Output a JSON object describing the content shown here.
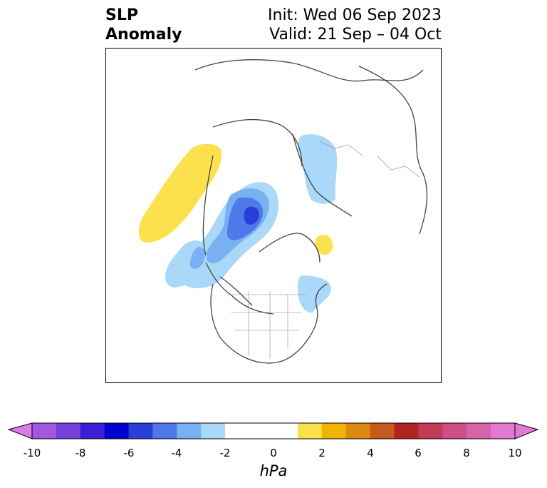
{
  "title": {
    "left_line1": "SLP",
    "left_line2": "Anomaly",
    "right_line1": "Init: Wed 06 Sep 2023",
    "right_line2": "Valid: 21 Sep – 04 Oct"
  },
  "map": {
    "projection": "north-polar-stereographic",
    "region": "Northern Hemisphere (North America, Arctic, Europe)"
  },
  "colorbar": {
    "unit": "hPa",
    "tick_labels": [
      "-10",
      "-8",
      "-6",
      "-4",
      "-2",
      "0",
      "2",
      "4",
      "6",
      "8",
      "10"
    ],
    "bin_colors": [
      "#d97ae8",
      "#9f58df",
      "#7440d8",
      "#3b1fd6",
      "#0000d0",
      "#2a3fd8",
      "#4f79e8",
      "#78b0f2",
      "#a9d8f8",
      "#ffffff",
      "#fce14f",
      "#f0b400",
      "#dc8a10",
      "#c75a1a",
      "#b22424",
      "#c23a58",
      "#ce4f82",
      "#d763a8",
      "#e27ad2"
    ],
    "extend": "both"
  },
  "anomaly_features": [
    {
      "name": "negative anomaly center over Arctic/north of Alaska",
      "value_hPa": -6
    },
    {
      "name": "negative anomaly over Scandinavia/Baltic",
      "value_hPa": -2
    },
    {
      "name": "negative anomaly over Gulf of Alaska",
      "value_hPa": -3
    },
    {
      "name": "negative anomaly over eastern Canada/Newfoundland",
      "value_hPa": -2
    },
    {
      "name": "positive anomaly over Siberia/Sea of Okhotsk",
      "value_hPa": 2
    },
    {
      "name": "positive anomaly over eastern Greenland",
      "value_hPa": 2
    }
  ]
}
